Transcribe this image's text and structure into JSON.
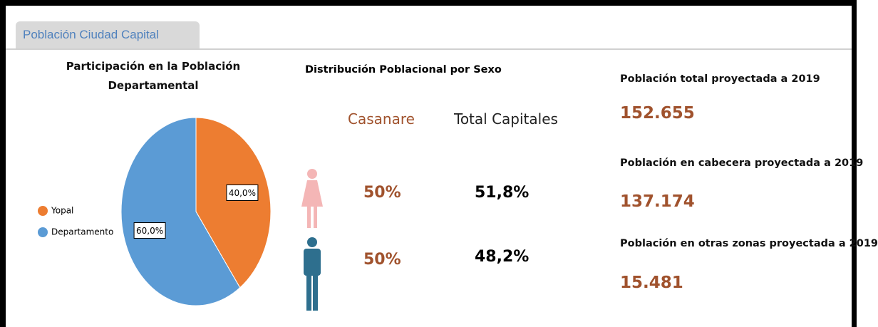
{
  "tab": {
    "title": "Población Ciudad Capital"
  },
  "chart_data": {
    "type": "pie",
    "title": "Participación en la Población Departamental",
    "categories": [
      "Yopal",
      "Departamento"
    ],
    "values": [
      40,
      60
    ],
    "value_labels": [
      "40,0%",
      "60,0%"
    ],
    "colors": [
      "#ED7D31",
      "#5B9BD5"
    ],
    "legend": "left"
  },
  "sex_distribution": {
    "title": "Distribución Poblacional por Sexo",
    "columns": [
      "Casanare",
      "Total Capitales"
    ],
    "rows": [
      [
        "50%",
        "51,8%"
      ],
      [
        "50%",
        "48,2%"
      ]
    ]
  },
  "stats": [
    {
      "label": "Población total proyectada a 2019",
      "value": "152.655"
    },
    {
      "label": "Población en cabecera proyectada a 2019",
      "value": "137.174"
    },
    {
      "label": "Población en otras zonas proyectada a 2019",
      "value": "15.481"
    }
  ]
}
